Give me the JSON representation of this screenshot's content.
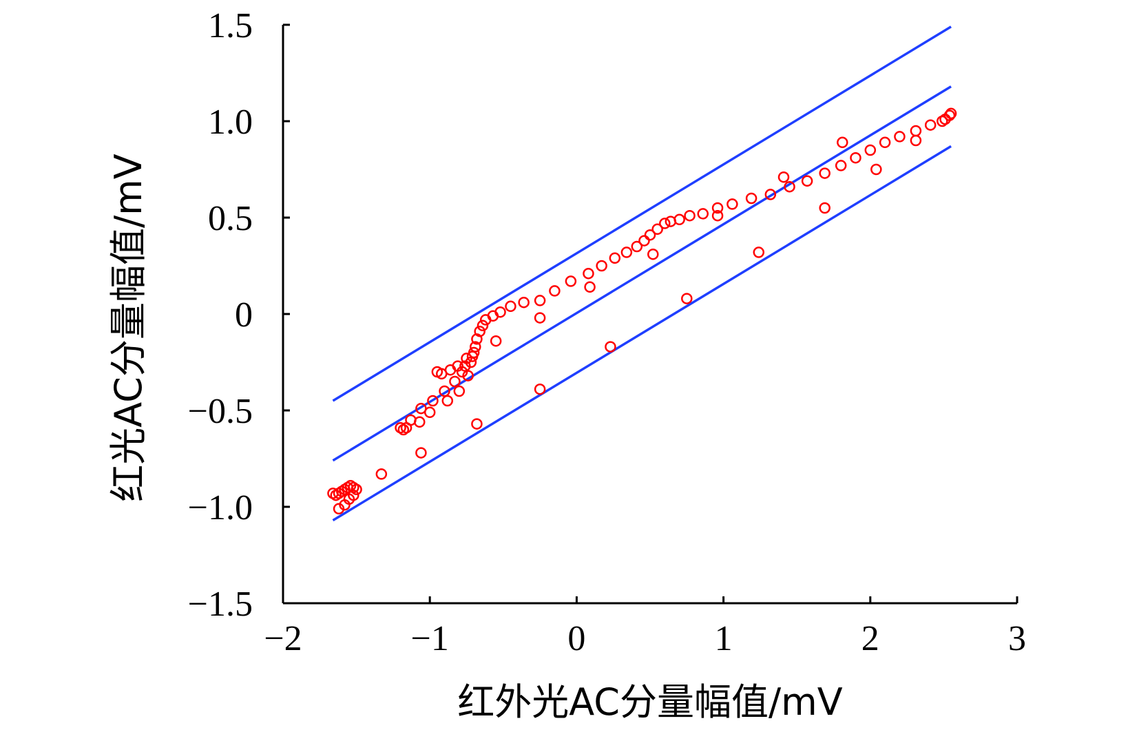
{
  "chart_data": {
    "type": "scatter",
    "title": "",
    "xlabel": "红外光AC分量幅值/mV",
    "ylabel": "红光AC分量幅值/mV",
    "xlim": [
      -2,
      3
    ],
    "ylim": [
      -1.5,
      1.5
    ],
    "x_ticks": [
      -2,
      -1,
      0,
      1,
      2,
      3
    ],
    "x_tick_labels": [
      "−2",
      "−1",
      "0",
      "1",
      "2",
      "3"
    ],
    "y_ticks": [
      -1.5,
      -1.0,
      -0.5,
      0,
      0.5,
      1.0,
      1.5
    ],
    "y_tick_labels": [
      "−1.5",
      "−1.0",
      "−0.5",
      "0",
      "0.5",
      "1.0",
      "1.5"
    ],
    "grid": false,
    "legend": "none",
    "colors": {
      "points": "#ff0000",
      "lines": "#1f3fff",
      "axis": "#000000"
    },
    "points": [
      [
        -1.66,
        -0.93
      ],
      [
        -1.64,
        -0.94
      ],
      [
        -1.62,
        -0.93
      ],
      [
        -1.6,
        -0.92
      ],
      [
        -1.58,
        -0.91
      ],
      [
        -1.56,
        -0.9
      ],
      [
        -1.54,
        -0.89
      ],
      [
        -1.52,
        -0.9
      ],
      [
        -1.5,
        -0.91
      ],
      [
        -1.52,
        -0.94
      ],
      [
        -1.55,
        -0.96
      ],
      [
        -1.58,
        -0.99
      ],
      [
        -1.62,
        -1.01
      ],
      [
        -1.33,
        -0.83
      ],
      [
        -1.2,
        -0.59
      ],
      [
        -1.18,
        -0.6
      ],
      [
        -1.16,
        -0.59
      ],
      [
        -1.13,
        -0.55
      ],
      [
        -1.07,
        -0.56
      ],
      [
        -1.06,
        -0.49
      ],
      [
        -1.0,
        -0.51
      ],
      [
        -0.98,
        -0.45
      ],
      [
        -0.95,
        -0.3
      ],
      [
        -0.92,
        -0.31
      ],
      [
        -0.9,
        -0.4
      ],
      [
        -0.88,
        -0.45
      ],
      [
        -0.86,
        -0.29
      ],
      [
        -0.83,
        -0.35
      ],
      [
        -0.81,
        -0.27
      ],
      [
        -0.8,
        -0.4
      ],
      [
        -0.78,
        -0.3
      ],
      [
        -0.76,
        -0.27
      ],
      [
        -0.75,
        -0.23
      ],
      [
        -0.74,
        -0.32
      ],
      [
        -0.72,
        -0.25
      ],
      [
        -0.71,
        -0.22
      ],
      [
        -0.7,
        -0.2
      ],
      [
        -0.69,
        -0.17
      ],
      [
        -0.68,
        -0.13
      ],
      [
        -0.66,
        -0.09
      ],
      [
        -0.64,
        -0.06
      ],
      [
        -0.62,
        -0.03
      ],
      [
        -0.57,
        -0.01
      ],
      [
        -0.52,
        0.01
      ],
      [
        -0.45,
        0.04
      ],
      [
        -0.36,
        0.06
      ],
      [
        -0.25,
        0.07
      ],
      [
        -0.15,
        0.12
      ],
      [
        -0.04,
        0.17
      ],
      [
        0.08,
        0.21
      ],
      [
        0.17,
        0.25
      ],
      [
        0.26,
        0.29
      ],
      [
        0.34,
        0.32
      ],
      [
        0.41,
        0.35
      ],
      [
        0.46,
        0.38
      ],
      [
        0.5,
        0.41
      ],
      [
        0.55,
        0.44
      ],
      [
        0.6,
        0.47
      ],
      [
        0.64,
        0.48
      ],
      [
        0.7,
        0.49
      ],
      [
        0.77,
        0.51
      ],
      [
        0.86,
        0.52
      ],
      [
        0.96,
        0.55
      ],
      [
        1.06,
        0.57
      ],
      [
        1.19,
        0.6
      ],
      [
        1.32,
        0.62
      ],
      [
        1.45,
        0.66
      ],
      [
        1.57,
        0.69
      ],
      [
        1.69,
        0.73
      ],
      [
        1.8,
        0.77
      ],
      [
        1.9,
        0.81
      ],
      [
        2.0,
        0.85
      ],
      [
        2.1,
        0.89
      ],
      [
        2.2,
        0.92
      ],
      [
        2.31,
        0.95
      ],
      [
        2.41,
        0.98
      ],
      [
        2.49,
        1.0
      ],
      [
        2.51,
        1.01
      ],
      [
        2.54,
        1.03
      ],
      [
        2.55,
        1.04
      ],
      [
        -1.06,
        -0.72
      ],
      [
        -0.68,
        -0.57
      ],
      [
        -0.55,
        -0.14
      ],
      [
        -0.25,
        -0.02
      ],
      [
        -0.25,
        -0.39
      ],
      [
        0.09,
        0.14
      ],
      [
        0.23,
        -0.17
      ],
      [
        0.52,
        0.31
      ],
      [
        0.75,
        0.08
      ],
      [
        0.96,
        0.51
      ],
      [
        1.24,
        0.32
      ],
      [
        1.41,
        0.71
      ],
      [
        1.69,
        0.55
      ],
      [
        1.81,
        0.89
      ],
      [
        2.04,
        0.75
      ],
      [
        2.31,
        0.9
      ]
    ],
    "lines": [
      {
        "x": [
          -1.66,
          2.55
        ],
        "y": [
          -0.45,
          1.49
        ]
      },
      {
        "x": [
          -1.66,
          2.55
        ],
        "y": [
          -0.76,
          1.18
        ]
      },
      {
        "x": [
          -1.66,
          2.55
        ],
        "y": [
          -1.07,
          0.87
        ]
      }
    ]
  }
}
